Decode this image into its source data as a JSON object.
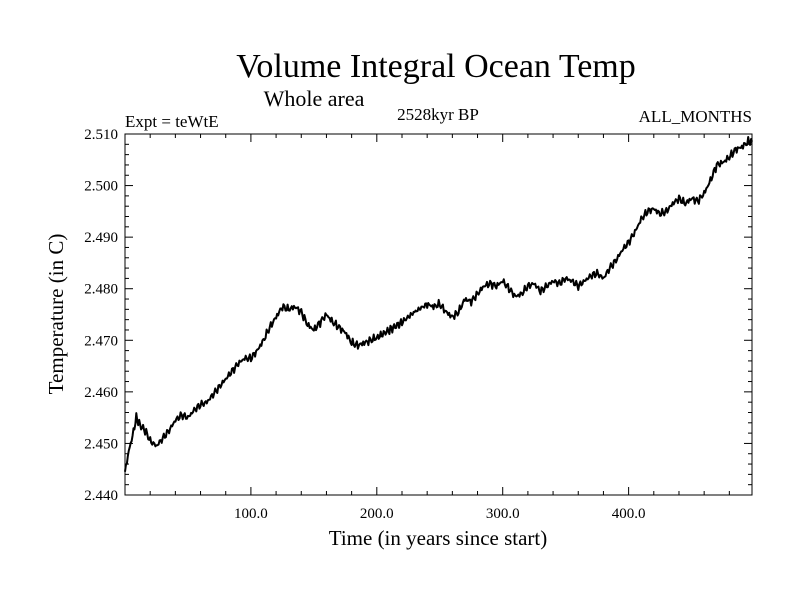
{
  "chart_data": {
    "type": "line",
    "title": "Volume Integral Ocean Temp",
    "subtitle": "Whole area",
    "annotations": {
      "left": "Expt = teWtE",
      "center": "2528kyr BP",
      "right": "ALL_MONTHS"
    },
    "xlabel": "Time (in years since start)",
    "ylabel": "Temperature (in C)",
    "xlim": [
      0,
      498
    ],
    "ylim": [
      2.44,
      2.51
    ],
    "x_ticks": [
      100,
      200,
      300,
      400
    ],
    "x_tick_labels": [
      "100.0",
      "200.0",
      "300.0",
      "400.0"
    ],
    "y_ticks": [
      2.44,
      2.45,
      2.46,
      2.47,
      2.48,
      2.49,
      2.5,
      2.51
    ],
    "y_tick_labels": [
      "2.440",
      "2.450",
      "2.460",
      "2.470",
      "2.480",
      "2.490",
      "2.500",
      "2.510"
    ],
    "grid": false,
    "series": [
      {
        "name": "Volume integral ocean temperature",
        "x": [
          0,
          3,
          6,
          9,
          12,
          16,
          20,
          25,
          30,
          35,
          40,
          45,
          50,
          55,
          60,
          65,
          70,
          75,
          80,
          85,
          90,
          95,
          100,
          105,
          110,
          115,
          120,
          125,
          130,
          135,
          140,
          145,
          150,
          155,
          160,
          165,
          170,
          175,
          180,
          185,
          190,
          195,
          200,
          210,
          220,
          230,
          240,
          245,
          250,
          255,
          260,
          265,
          270,
          275,
          280,
          285,
          290,
          295,
          300,
          305,
          310,
          315,
          320,
          325,
          330,
          335,
          340,
          345,
          350,
          355,
          360,
          365,
          370,
          375,
          380,
          385,
          390,
          395,
          400,
          405,
          410,
          415,
          420,
          425,
          430,
          435,
          440,
          445,
          450,
          455,
          460,
          465,
          470,
          475,
          480,
          485,
          490,
          495,
          498
        ],
        "values": [
          2.4445,
          2.4485,
          2.4515,
          2.455,
          2.4535,
          2.4525,
          2.4505,
          2.4495,
          2.451,
          2.4525,
          2.4545,
          2.4555,
          2.455,
          2.4565,
          2.4575,
          2.458,
          2.4595,
          2.461,
          2.4625,
          2.464,
          2.4655,
          2.4665,
          2.4665,
          2.468,
          2.47,
          2.4725,
          2.4745,
          2.4765,
          2.476,
          2.4765,
          2.4755,
          2.473,
          2.472,
          2.4735,
          2.475,
          2.4735,
          2.4725,
          2.4715,
          2.4695,
          2.469,
          2.4695,
          2.47,
          2.4705,
          2.472,
          2.4735,
          2.4755,
          2.477,
          2.4765,
          2.477,
          2.4755,
          2.4745,
          2.4755,
          2.478,
          2.4775,
          2.479,
          2.4805,
          2.481,
          2.4805,
          2.4815,
          2.48,
          2.4785,
          2.479,
          2.4805,
          2.481,
          2.4795,
          2.4805,
          2.4815,
          2.481,
          2.482,
          2.4815,
          2.4805,
          2.4815,
          2.4825,
          2.483,
          2.482,
          2.484,
          2.4855,
          2.4875,
          2.489,
          2.491,
          2.4935,
          2.495,
          2.4955,
          2.4945,
          2.495,
          2.4965,
          2.4975,
          2.4965,
          2.4975,
          2.497,
          2.4985,
          2.501,
          2.504,
          2.5045,
          2.5055,
          2.507,
          2.5075,
          2.5085,
          2.5085
        ]
      }
    ]
  }
}
